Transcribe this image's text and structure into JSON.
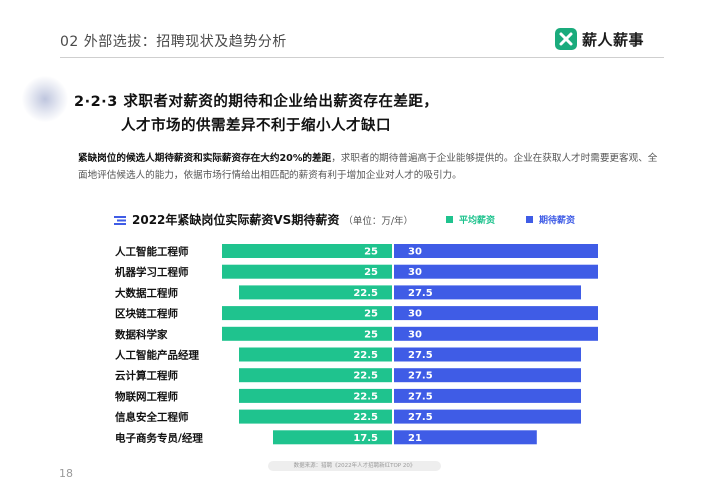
{
  "header": {
    "title": "02 外部选拔：招聘现状及趋势分析"
  },
  "logo": {
    "text": "薪人薪事",
    "icon": "logo-mark-icon"
  },
  "section": {
    "line1": "2·2·3 求职者对薪资的期待和企业给出薪资存在差距，",
    "line2": "人才市场的供需差异不利于缩小人才缺口"
  },
  "intro": {
    "bold": "紧缺岗位的候选人期待薪资和实际薪资存在大约20%的差距",
    "rest": "，求职者的期待普遍高于企业能够提供的。企业在获取人才时需要更客观、全面地评估候选人的能力，依据市场行情给出相匹配的薪资有利于增加企业对人才的吸引力。"
  },
  "chart_data": {
    "type": "bar",
    "title": "2022年紧缺岗位实际薪资VS期待薪资",
    "unit": "（单位：万/年）",
    "categories": [
      "人工智能工程师",
      "机器学习工程师",
      "大数据工程师",
      "区块链工程师",
      "数据科学家",
      "人工智能产品经理",
      "云计算工程师",
      "物联网工程师",
      "信息安全工程师",
      "电子商务专员/经理"
    ],
    "series": [
      {
        "name": "平均薪资",
        "color": "#1fc38e",
        "values": [
          25,
          25,
          22.5,
          25,
          25,
          22.5,
          22.5,
          22.5,
          22.5,
          17.5
        ]
      },
      {
        "name": "期待薪资",
        "color": "#3f5ce6",
        "values": [
          30,
          30,
          27.5,
          30,
          30,
          27.5,
          27.5,
          27.5,
          27.5,
          21
        ]
      }
    ],
    "value_labels": [
      [
        "25",
        "25",
        "22.5",
        "25",
        "25",
        "22.5",
        "22.5",
        "22.5",
        "22.5",
        "17.5"
      ],
      [
        "30",
        "30",
        "27.5",
        "30",
        "30",
        "27.5",
        "27.5",
        "27.5",
        "27.5",
        "21"
      ]
    ],
    "legend_position": "top-right",
    "grid": false
  },
  "footer": {
    "source": "数据来源：猎聘《2022年人才招聘新红TOP 20》",
    "page": "18"
  }
}
